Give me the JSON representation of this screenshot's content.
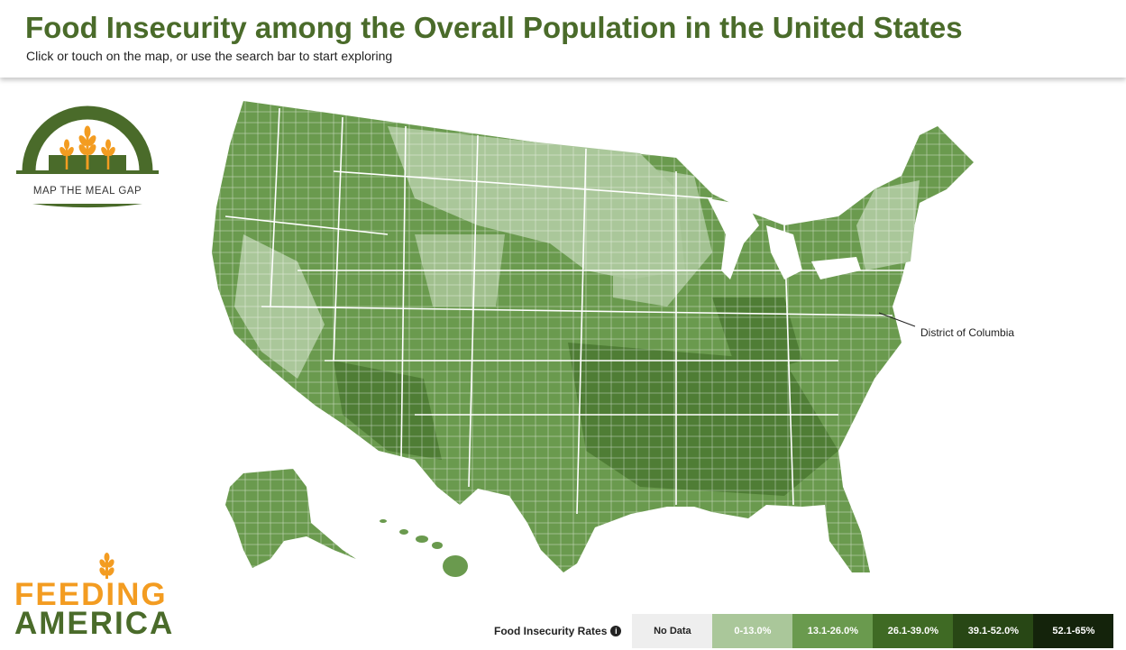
{
  "header": {
    "title": "Food Insecurity among the Overall Population in the United States",
    "subtitle": "Click or touch on the map, or use the search bar to start exploring"
  },
  "logos": {
    "map_the_meal_gap": "MAP THE MEAL GAP",
    "feeding_america_line1": "FEEDING",
    "feeding_america_line2": "AMERICA"
  },
  "map": {
    "annotation": "District of Columbia",
    "colors": {
      "background": "#ffffff",
      "border": "#ffffff",
      "highlight_border": "#d9a06b"
    }
  },
  "legend": {
    "title": "Food Insecurity Rates",
    "info_icon": "info-icon",
    "bins": [
      {
        "label": "No Data",
        "color": "#eeeeee",
        "text_color": "#222222"
      },
      {
        "label": "0-13.0%",
        "color": "#aac79a",
        "text_color": "#ffffff"
      },
      {
        "label": "13.1-26.0%",
        "color": "#6a9a4e",
        "text_color": "#ffffff"
      },
      {
        "label": "26.1-39.0%",
        "color": "#3f6a24",
        "text_color": "#ffffff"
      },
      {
        "label": "39.1-52.0%",
        "color": "#284715",
        "text_color": "#ffffff"
      },
      {
        "label": "52.1-65%",
        "color": "#14230b",
        "text_color": "#ffffff"
      }
    ]
  }
}
